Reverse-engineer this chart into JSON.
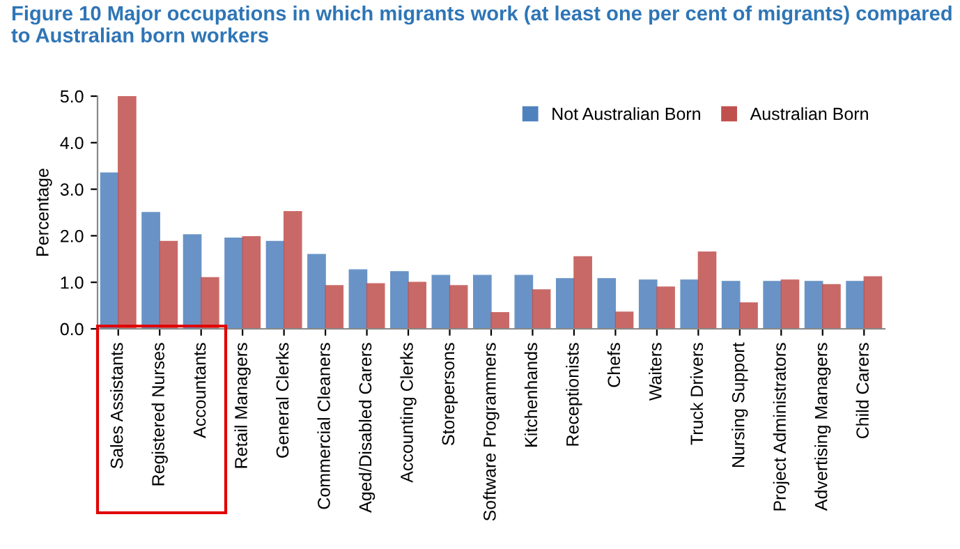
{
  "chart_data": {
    "type": "bar",
    "title": "Figure 10 Major occupations in which migrants work (at least one per cent of migrants) compared to Australian born workers",
    "ylabel": "Percentage",
    "categories": [
      "Sales Assistants",
      "Registered Nurses",
      "Accountants",
      "Retail Managers",
      "General Clerks",
      "Commercial Cleaners",
      "Aged/Disabled Carers",
      "Accounting Clerks",
      "Storepersons",
      "Software Programmers",
      "Kitchenhands",
      "Receptionists",
      "Chefs",
      "Waiters",
      "Truck Drivers",
      "Nursing Support",
      "Project Administrators",
      "Advertising Managers",
      "Child Carers"
    ],
    "series": [
      {
        "name": "Not Australian Born",
        "color": "#4f81bd",
        "values": [
          3.35,
          2.5,
          2.02,
          1.95,
          1.88,
          1.6,
          1.27,
          1.23,
          1.15,
          1.15,
          1.15,
          1.08,
          1.08,
          1.05,
          1.05,
          1.02,
          1.02,
          1.02,
          1.02
        ]
      },
      {
        "name": "Australian Born",
        "color": "#c0504d",
        "values": [
          5.0,
          1.88,
          1.1,
          1.98,
          2.52,
          0.93,
          0.97,
          1.0,
          0.93,
          0.35,
          0.84,
          1.55,
          0.36,
          0.9,
          1.65,
          0.56,
          1.05,
          0.95,
          1.12
        ]
      }
    ],
    "ylim": [
      0,
      5
    ],
    "yticks": [
      {
        "value": 0,
        "label": "0.0"
      },
      {
        "value": 1,
        "label": "1.0"
      },
      {
        "value": 2,
        "label": "2.0"
      },
      {
        "value": 3,
        "label": "3.0"
      },
      {
        "value": 4,
        "label": "4.0"
      },
      {
        "value": 5,
        "label": "5.0"
      }
    ],
    "grid": false,
    "legend": "top right"
  }
}
